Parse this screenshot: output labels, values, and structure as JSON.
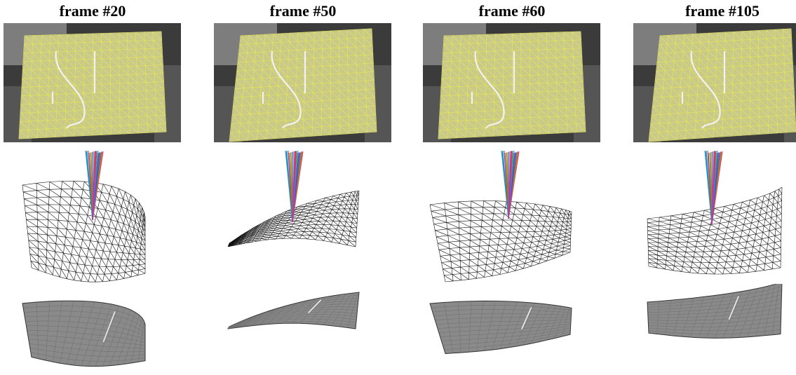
{
  "frames": [
    {
      "title": "frame #20"
    },
    {
      "title": "frame #50"
    },
    {
      "title": "frame #60"
    },
    {
      "title": "frame #105"
    }
  ],
  "colors": {
    "mesh_overlay": "#e4e45a",
    "photo_tint": "#c9c98a",
    "background_dark": "#2a2a2a",
    "wire": "#111111"
  },
  "rows": [
    "tracked-image",
    "reconstructed-mesh",
    "textured-surface"
  ]
}
